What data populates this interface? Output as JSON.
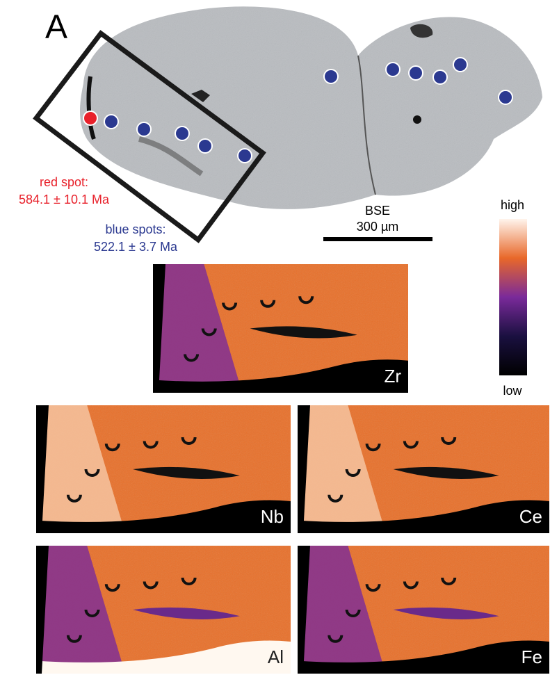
{
  "figure": {
    "panel_label": "A",
    "red_spot": {
      "label": "red spot:",
      "age": "584.1 ± 10.1 Ma"
    },
    "blue_spots": {
      "label": "blue spots:",
      "age": "522.1 ± 3.7 Ma"
    },
    "bse": {
      "label": "BSE",
      "scale": "300 µm"
    },
    "colorbar": {
      "high": "high",
      "low": "low"
    },
    "maps": [
      "Zr",
      "Nb",
      "Ce",
      "Al",
      "Fe"
    ]
  }
}
